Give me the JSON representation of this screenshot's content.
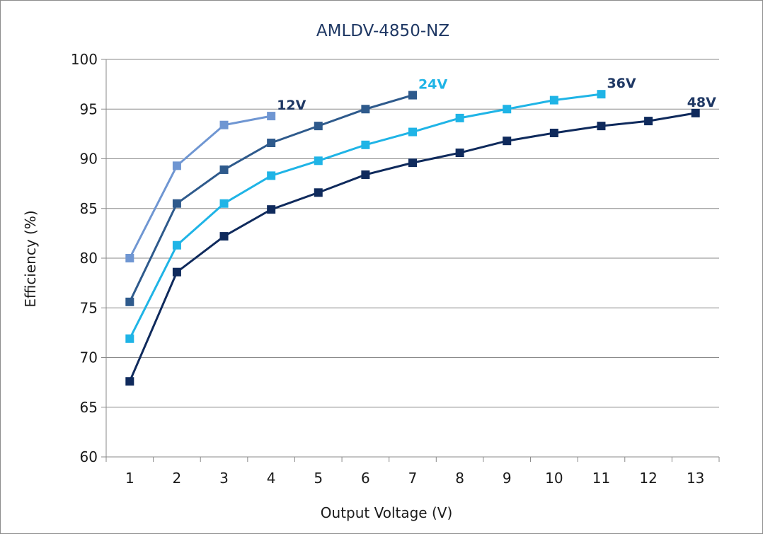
{
  "chart_data": {
    "type": "line",
    "title": "AMLDV-4850-NZ",
    "xlabel": "Output Voltage (V)",
    "ylabel": "Efficiency (%)",
    "xlim": [
      0.5,
      13.5
    ],
    "ylim": [
      60,
      100
    ],
    "x_ticks": [
      1,
      2,
      3,
      4,
      5,
      6,
      7,
      8,
      9,
      10,
      11,
      12,
      13
    ],
    "y_ticks": [
      60,
      65,
      70,
      75,
      80,
      85,
      90,
      95,
      100
    ],
    "grid": "horizontal",
    "legend": "inline labels at series ends",
    "series": [
      {
        "name": "12V",
        "color": "#6f96d2",
        "label_color": "#1f3864",
        "x": [
          1,
          2,
          3,
          4
        ],
        "values": [
          80.0,
          89.3,
          93.4,
          94.3
        ]
      },
      {
        "name": "24V",
        "color": "#2e5a8c",
        "label_color": "#1fb4e6",
        "x": [
          1,
          2,
          3,
          4,
          5,
          6,
          7
        ],
        "values": [
          75.6,
          85.5,
          88.9,
          91.6,
          93.3,
          95.0,
          96.4
        ]
      },
      {
        "name": "36V",
        "color": "#1fb4e6",
        "label_color": "#1f3864",
        "x": [
          1,
          2,
          3,
          4,
          5,
          6,
          7,
          8,
          9,
          10,
          11
        ],
        "values": [
          71.9,
          81.3,
          85.5,
          88.3,
          89.8,
          91.4,
          92.7,
          94.1,
          95.0,
          95.9,
          96.5
        ]
      },
      {
        "name": "48V",
        "color": "#0f2a5c",
        "label_color": "#1f3864",
        "x": [
          1,
          2,
          3,
          4,
          5,
          6,
          7,
          8,
          9,
          10,
          11,
          12,
          13
        ],
        "values": [
          67.6,
          78.6,
          82.2,
          84.9,
          86.6,
          88.4,
          89.6,
          90.6,
          91.8,
          92.6,
          93.3,
          93.8,
          94.6
        ]
      }
    ]
  }
}
